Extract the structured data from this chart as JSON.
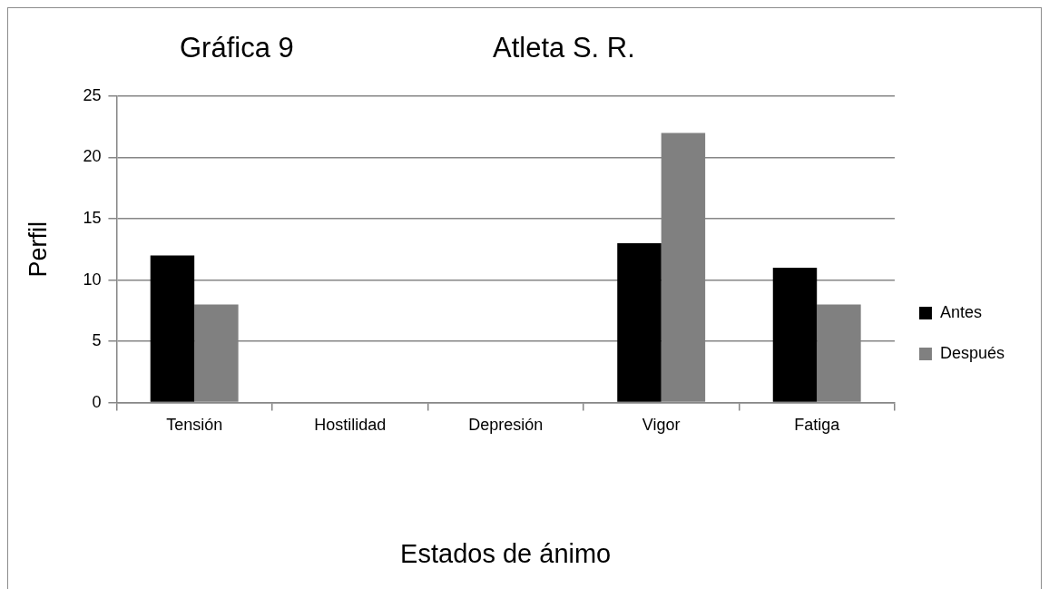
{
  "chart_data": {
    "type": "bar",
    "title": "Gráfica 9",
    "subtitle": "Atleta S. R.",
    "xlabel": "Estados de ánimo",
    "ylabel": "Perfil",
    "categories": [
      "Tensión",
      "Hostilidad",
      "Depresión",
      "Vigor",
      "Fatiga"
    ],
    "series": [
      {
        "name": "Antes",
        "color": "#000000",
        "values": [
          12,
          0,
          0,
          13,
          11
        ]
      },
      {
        "name": "Después",
        "color": "#808080",
        "values": [
          8,
          0,
          0,
          22,
          8
        ]
      }
    ],
    "ylim": [
      0,
      25
    ],
    "yticks": [
      0,
      5,
      10,
      15,
      20,
      25
    ],
    "grid": "y",
    "legend": "right"
  }
}
